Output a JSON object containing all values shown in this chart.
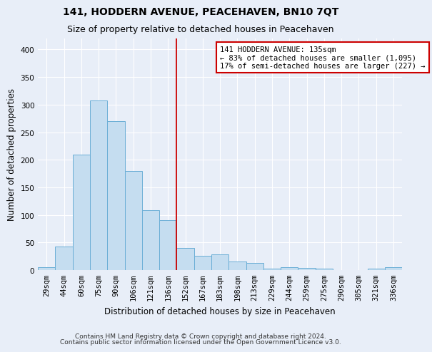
{
  "title": "141, HODDERN AVENUE, PEACEHAVEN, BN10 7QT",
  "subtitle": "Size of property relative to detached houses in Peacehaven",
  "xlabel": "Distribution of detached houses by size in Peacehaven",
  "ylabel": "Number of detached properties",
  "footer1": "Contains HM Land Registry data © Crown copyright and database right 2024.",
  "footer2": "Contains public sector information licensed under the Open Government Licence v3.0.",
  "categories": [
    "29sqm",
    "44sqm",
    "60sqm",
    "75sqm",
    "90sqm",
    "106sqm",
    "121sqm",
    "136sqm",
    "152sqm",
    "167sqm",
    "183sqm",
    "198sqm",
    "213sqm",
    "229sqm",
    "244sqm",
    "259sqm",
    "275sqm",
    "290sqm",
    "305sqm",
    "321sqm",
    "336sqm"
  ],
  "values": [
    5,
    43,
    210,
    308,
    270,
    180,
    108,
    90,
    40,
    26,
    28,
    16,
    13,
    3,
    5,
    4,
    2,
    0,
    0,
    3,
    5
  ],
  "bar_color": "#c5ddf0",
  "bar_edge_color": "#6aaed6",
  "vline_x": 7.5,
  "vline_color": "#cc0000",
  "annotation_text": "141 HODDERN AVENUE: 135sqm\n← 83% of detached houses are smaller (1,095)\n17% of semi-detached houses are larger (227) →",
  "annotation_box_color": "#ffffff",
  "annotation_box_edge": "#cc0000",
  "ylim": [
    0,
    420
  ],
  "yticks": [
    0,
    50,
    100,
    150,
    200,
    250,
    300,
    350,
    400
  ],
  "bg_color": "#e8eef8",
  "plot_bg_color": "#e8eef8",
  "title_fontsize": 10,
  "subtitle_fontsize": 9,
  "tick_fontsize": 7.5,
  "ylabel_fontsize": 8.5,
  "xlabel_fontsize": 8.5,
  "footer_fontsize": 6.5,
  "figwidth": 6.0,
  "figheight": 5.0,
  "dpi": 100
}
